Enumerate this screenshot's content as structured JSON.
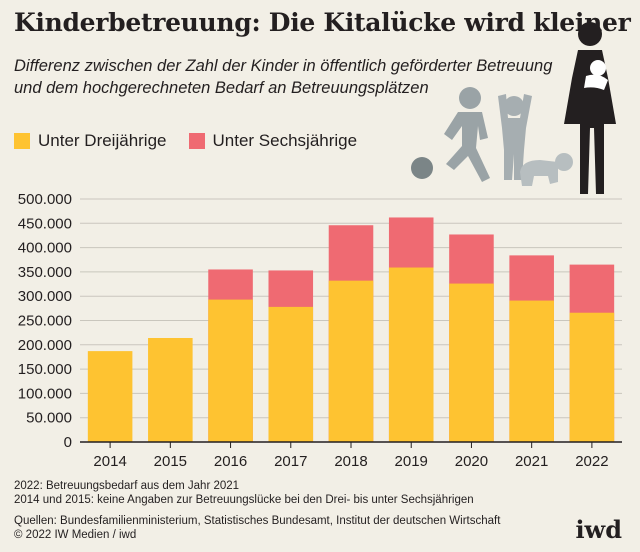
{
  "header": {
    "title": "Kinderbetreuung: Die Kitalücke wird kleiner",
    "subtitle": "Differenz zwischen der Zahl der Kinder in öffentlich geförderter Betreuung und dem hochgerechneten Bedarf an Betreuungsplätzen"
  },
  "legend": [
    {
      "label": "Unter Dreijährige",
      "color": "#fec331"
    },
    {
      "label": "Unter Sechsjährige",
      "color": "#ef6a72"
    }
  ],
  "chart_data": {
    "type": "bar",
    "stacked": false,
    "categories": [
      "2014",
      "2015",
      "2016",
      "2017",
      "2018",
      "2019",
      "2020",
      "2021",
      "2022"
    ],
    "series": [
      {
        "name": "Unter Dreijährige",
        "color": "#fec331",
        "values": [
          187000,
          214000,
          293000,
          278000,
          332000,
          359000,
          326000,
          291000,
          266000
        ]
      },
      {
        "name": "Unter Sechsjährige",
        "color": "#ef6a72",
        "values": [
          null,
          null,
          355000,
          353000,
          446000,
          462000,
          427000,
          384000,
          365000
        ]
      }
    ],
    "y_ticks": [
      "0",
      "50.000",
      "100.000",
      "150.000",
      "200.000",
      "250.000",
      "300.000",
      "350.000",
      "400.000",
      "450.000",
      "500.000"
    ],
    "ylim": [
      0,
      500000
    ],
    "grid": true,
    "legend_position": "top-left"
  },
  "footer": {
    "note1": "2022: Betreuungsbedarf aus dem Jahr 2021",
    "note2": "2014 und 2015: keine Angaben zur Betreuungslücke bei den Drei- bis unter Sechsjährigen",
    "sources": "Quellen: Bundesfamilienministerium, Statistisches Bundesamt, Institut der deutschen Wirtschaft",
    "copyright": "© 2022 IW Medien / iwd",
    "logo": "iwd"
  }
}
